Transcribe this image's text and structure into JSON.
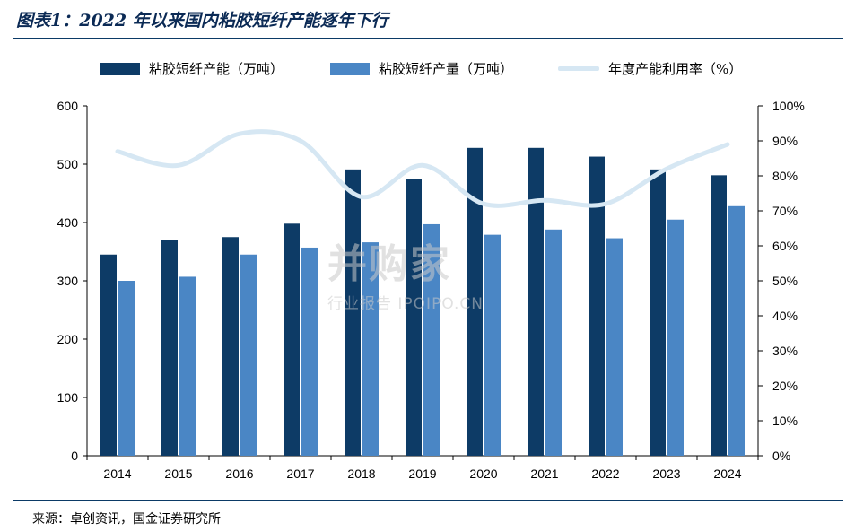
{
  "title": "图表1：2022 年以来国内粘胶短纤产能逐年下行",
  "source": "来源：卓创资讯，国金证券研究所",
  "watermark": {
    "main": "并购家",
    "sub": "行业报告 IPOIPO.CN"
  },
  "colors": {
    "capacity": "#0d3b66",
    "output": "#4a86c5",
    "rate": "#d6e7f3"
  },
  "chart_data": {
    "type": "bar",
    "categories": [
      "2014",
      "2015",
      "2016",
      "2017",
      "2018",
      "2019",
      "2020",
      "2021",
      "2022",
      "2023",
      "2024"
    ],
    "series": [
      {
        "name": "粘胶短纤产能（万吨）",
        "type": "bar",
        "axis": "left",
        "values": [
          345,
          370,
          375,
          398,
          491,
          474,
          528,
          528,
          513,
          491,
          481
        ]
      },
      {
        "name": "粘胶短纤产量（万吨）",
        "type": "bar",
        "axis": "left",
        "values": [
          300,
          307,
          345,
          357,
          366,
          397,
          379,
          388,
          373,
          405,
          428
        ]
      },
      {
        "name": "年度产能利用率（%）",
        "type": "line",
        "axis": "right",
        "values": [
          87,
          83,
          92,
          90,
          74,
          83,
          72,
          73,
          72,
          82,
          89
        ]
      }
    ],
    "left_axis": {
      "ylim": [
        0,
        600
      ],
      "ticks": [
        "0",
        "100",
        "200",
        "300",
        "400",
        "500",
        "600"
      ]
    },
    "right_axis": {
      "ylim": [
        0,
        100
      ],
      "ticks": [
        "0%",
        "10%",
        "20%",
        "30%",
        "40%",
        "50%",
        "60%",
        "70%",
        "80%",
        "90%",
        "100%"
      ]
    },
    "legend": "top"
  }
}
